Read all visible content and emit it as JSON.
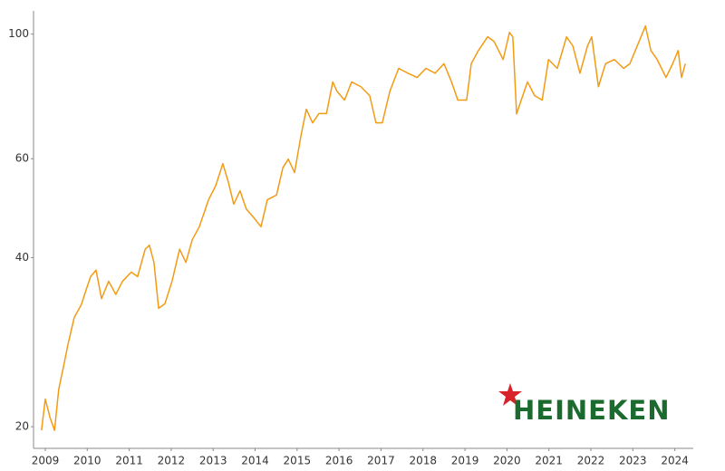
{
  "chart_data": {
    "type": "line",
    "log_scale": true,
    "grid": false,
    "logo": "HEINEKEN",
    "color": "#f29b14",
    "x": [
      2008.91,
      2009.0,
      2009.11,
      2009.22,
      2009.32,
      2009.43,
      2009.54,
      2009.69,
      2009.86,
      2009.97,
      2010.08,
      2010.21,
      2010.34,
      2010.51,
      2010.68,
      2010.84,
      2011.05,
      2011.2,
      2011.38,
      2011.48,
      2011.59,
      2011.7,
      2011.85,
      2012.02,
      2012.2,
      2012.35,
      2012.5,
      2012.67,
      2012.89,
      2013.06,
      2013.23,
      2013.36,
      2013.49,
      2013.64,
      2013.79,
      2013.97,
      2014.14,
      2014.29,
      2014.51,
      2014.66,
      2014.79,
      2014.94,
      2015.09,
      2015.22,
      2015.37,
      2015.52,
      2015.7,
      2015.85,
      2015.95,
      2016.13,
      2016.3,
      2016.52,
      2016.73,
      2016.88,
      2017.03,
      2017.21,
      2017.42,
      2017.64,
      2017.86,
      2018.07,
      2018.29,
      2018.5,
      2018.68,
      2018.83,
      2019.04,
      2019.15,
      2019.32,
      2019.54,
      2019.69,
      2019.91,
      2020.06,
      2020.14,
      2020.23,
      2020.34,
      2020.49,
      2020.66,
      2020.84,
      2020.99,
      2021.2,
      2021.42,
      2021.57,
      2021.74,
      2021.92,
      2022.02,
      2022.18,
      2022.35,
      2022.56,
      2022.78,
      2022.93,
      2023.15,
      2023.3,
      2023.43,
      2023.58,
      2023.79,
      2023.95,
      2024.08,
      2024.16,
      2024.25
    ],
    "values": [
      19.7,
      22.4,
      20.8,
      19.7,
      23.3,
      25.5,
      28,
      31.3,
      33,
      35,
      37,
      38,
      33.8,
      36.3,
      34.4,
      36.3,
      37.7,
      37,
      41.4,
      42.1,
      39.2,
      32.5,
      33.1,
      36.3,
      41.4,
      39.2,
      43,
      45.4,
      50.7,
      53.7,
      58.8,
      54.6,
      49.8,
      52.6,
      48.8,
      47.1,
      45.4,
      50.7,
      51.7,
      57.8,
      59.9,
      56.7,
      65.8,
      73.5,
      69.5,
      72.2,
      72.2,
      82.2,
      79.1,
      76.3,
      82.2,
      80.6,
      77.7,
      69.5,
      69.5,
      79.1,
      86.9,
      85.2,
      83.7,
      86.9,
      85.2,
      88.6,
      82.2,
      76.3,
      76.3,
      88.6,
      93.5,
      98.9,
      97.1,
      90.1,
      100.7,
      98.9,
      72.1,
      76.3,
      82.2,
      77.7,
      76.3,
      90.1,
      86.9,
      98.9,
      95.3,
      85.2,
      95.3,
      98.9,
      80.6,
      88.6,
      90.1,
      86.9,
      88.6,
      97.1,
      103.4,
      93.5,
      90.1,
      83.7,
      88.6,
      93.5,
      83.7,
      88.6
    ],
    "xlim": [
      2008.72,
      2024.44
    ],
    "xticks": [
      2009,
      2010,
      2011,
      2012,
      2013,
      2014,
      2015,
      2016,
      2017,
      2018,
      2019,
      2020,
      2021,
      2022,
      2023,
      2024
    ],
    "ylim": [
      18.3,
      110
    ],
    "yticks": [
      20,
      40,
      60,
      100
    ]
  }
}
